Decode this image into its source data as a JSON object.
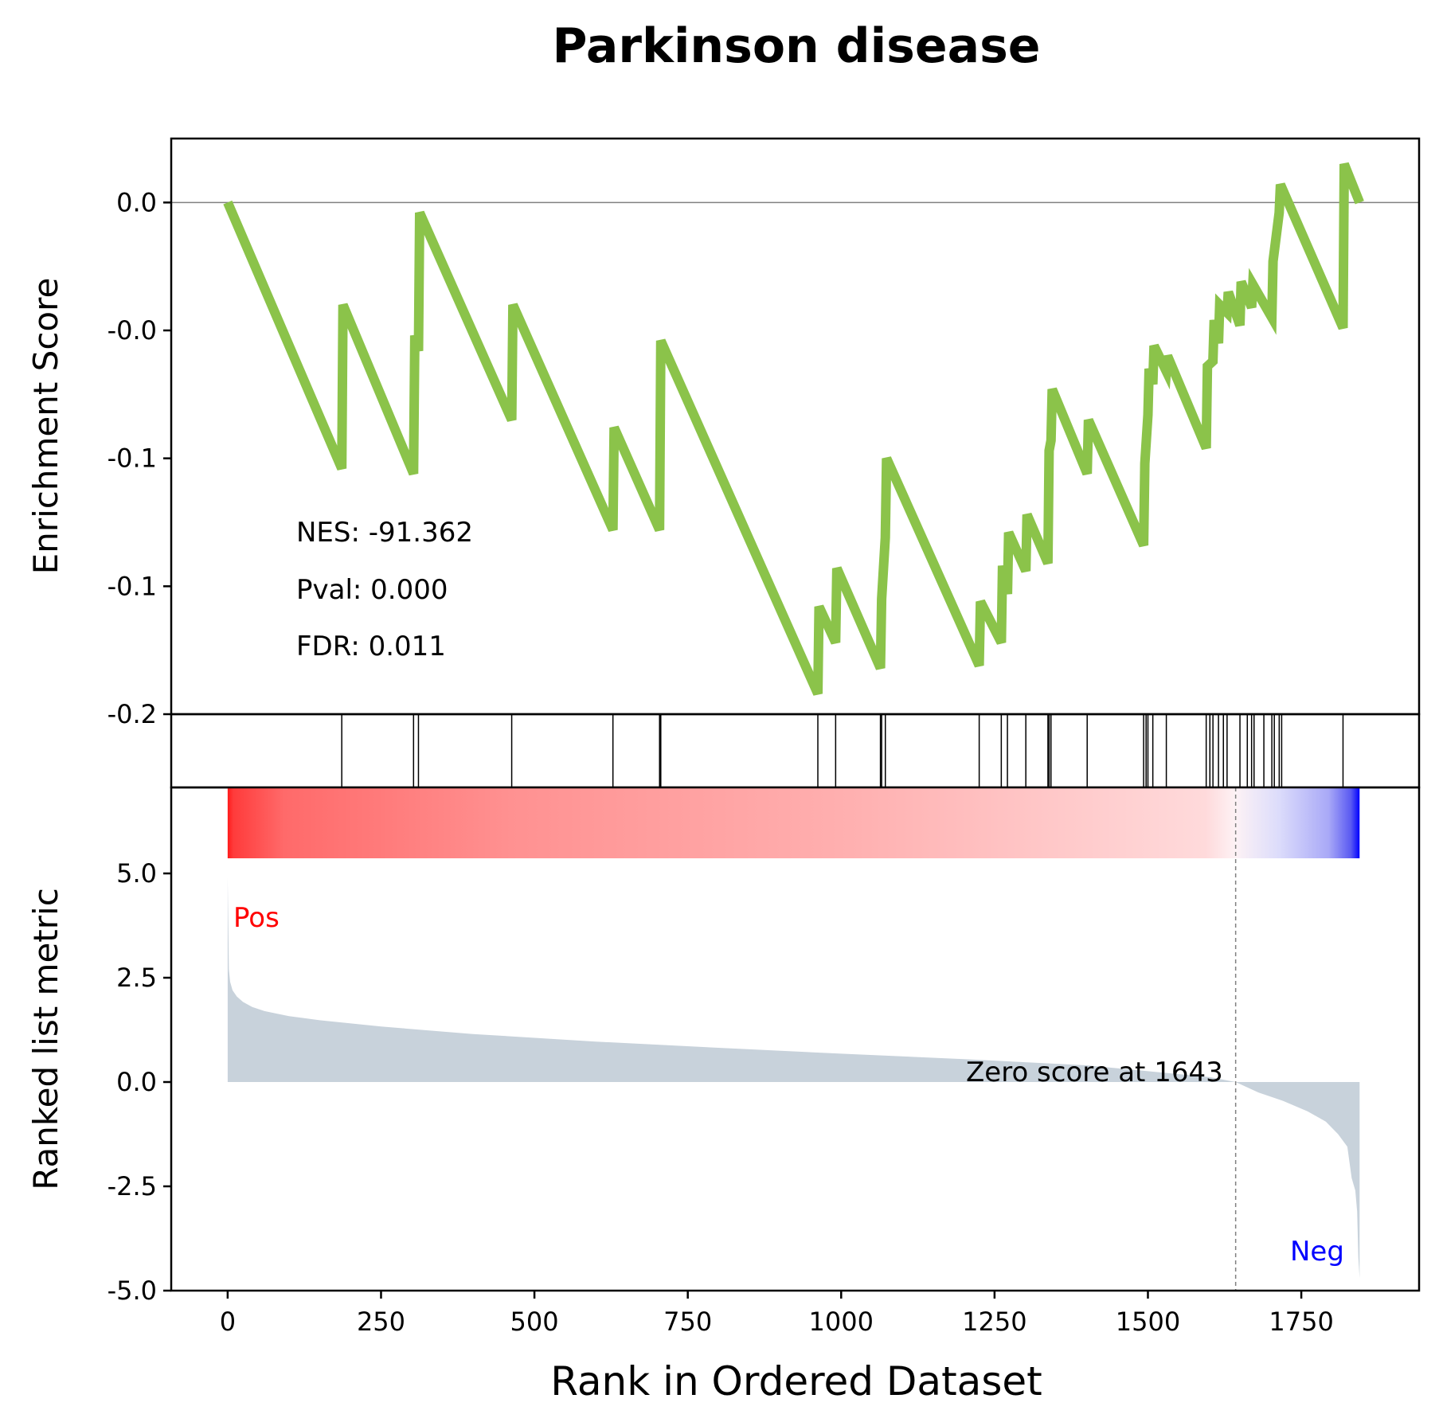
{
  "chart_data": {
    "type": "line",
    "title": "Parkinson disease",
    "xlabel": "Rank in Ordered Dataset",
    "xlim": [
      -92,
      1942
    ],
    "x_ticks": [
      "0",
      "250",
      "500",
      "750",
      "1000",
      "1250",
      "1500",
      "1750"
    ],
    "x_tick_values": [
      0,
      250,
      500,
      750,
      1000,
      1250,
      1500,
      1750
    ],
    "enrichment": {
      "ylabel": "Enrichment Score",
      "ylim": [
        -0.2,
        0.025
      ],
      "y_ticks": [
        "0.0",
        "-0.0",
        "-0.1",
        "-0.1",
        "-0.2"
      ],
      "y_tick_values": [
        0.0,
        -0.05,
        -0.1,
        -0.15,
        -0.2
      ],
      "color": "#8bc34a",
      "x": [
        0,
        186,
        188,
        303,
        305,
        311,
        313,
        463,
        465,
        628,
        630,
        704,
        706,
        962,
        964,
        991,
        993,
        1064,
        1066,
        1072,
        1074,
        1225,
        1227,
        1261,
        1263,
        1271,
        1273,
        1301,
        1303,
        1337,
        1339,
        1342,
        1344,
        1401,
        1403,
        1493,
        1495,
        1500,
        1502,
        1508,
        1510,
        1530,
        1532,
        1595,
        1597,
        1606,
        1608,
        1615,
        1617,
        1629,
        1631,
        1650,
        1652,
        1669,
        1671,
        1702,
        1704,
        1714,
        1716,
        1818,
        1820,
        1845
      ],
      "y": [
        0.0,
        -0.104,
        -0.04,
        -0.106,
        -0.052,
        -0.058,
        -0.004,
        -0.085,
        -0.04,
        -0.128,
        -0.088,
        -0.128,
        -0.054,
        -0.192,
        -0.158,
        -0.172,
        -0.143,
        -0.182,
        -0.155,
        -0.131,
        -0.1,
        -0.181,
        -0.156,
        -0.172,
        -0.142,
        -0.153,
        -0.129,
        -0.144,
        -0.122,
        -0.141,
        -0.097,
        -0.093,
        -0.073,
        -0.106,
        -0.085,
        -0.134,
        -0.102,
        -0.083,
        -0.065,
        -0.071,
        -0.056,
        -0.066,
        -0.06,
        -0.096,
        -0.064,
        -0.062,
        -0.046,
        -0.055,
        -0.04,
        -0.043,
        -0.035,
        -0.048,
        -0.031,
        -0.041,
        -0.032,
        -0.045,
        -0.023,
        -0.004,
        0.007,
        -0.049,
        0.015,
        0.0
      ]
    },
    "hits": [
      186,
      303,
      311,
      463,
      628,
      704,
      706,
      962,
      991,
      1064,
      1066,
      1072,
      1225,
      1261,
      1271,
      1301,
      1337,
      1339,
      1342,
      1401,
      1493,
      1497,
      1500,
      1508,
      1530,
      1595,
      1601,
      1606,
      1615,
      1623,
      1629,
      1650,
      1662,
      1669,
      1673,
      1689,
      1702,
      1706,
      1714,
      1718,
      1818
    ],
    "ranked_metric": {
      "ylabel": "Ranked list metric",
      "ylim": [
        -5.0,
        5.0
      ],
      "y_ticks": [
        "5.0",
        "2.5",
        "0.0",
        "-2.5",
        "-5.0"
      ],
      "y_tick_values": [
        5.0,
        2.5,
        0.0,
        -2.5,
        -5.0
      ],
      "fill_color": "#c8d2db",
      "x": [
        0,
        2,
        4,
        8,
        15,
        25,
        40,
        60,
        100,
        150,
        250,
        400,
        600,
        800,
        1000,
        1200,
        1400,
        1600,
        1643,
        1680,
        1720,
        1760,
        1790,
        1810,
        1825,
        1832,
        1838,
        1841,
        1843,
        1845
      ],
      "y": [
        4.9,
        2.7,
        2.4,
        2.2,
        2.05,
        1.92,
        1.8,
        1.7,
        1.58,
        1.48,
        1.33,
        1.15,
        0.97,
        0.82,
        0.68,
        0.55,
        0.4,
        0.12,
        0.0,
        -0.25,
        -0.45,
        -0.7,
        -0.95,
        -1.25,
        -1.55,
        -2.3,
        -2.6,
        -3.1,
        -4.2,
        -4.7
      ]
    },
    "colorbar": {
      "zero_rank": 1643,
      "pos_color": "#ff0000",
      "neg_color": "#0000ff"
    },
    "annotations": {
      "nes": "NES: -91.362",
      "pval": "Pval: 0.000",
      "fdr": "FDR: 0.011",
      "zero_score": "Zero score at 1643",
      "pos": "Pos",
      "neg": "Neg"
    },
    "grid": false
  }
}
